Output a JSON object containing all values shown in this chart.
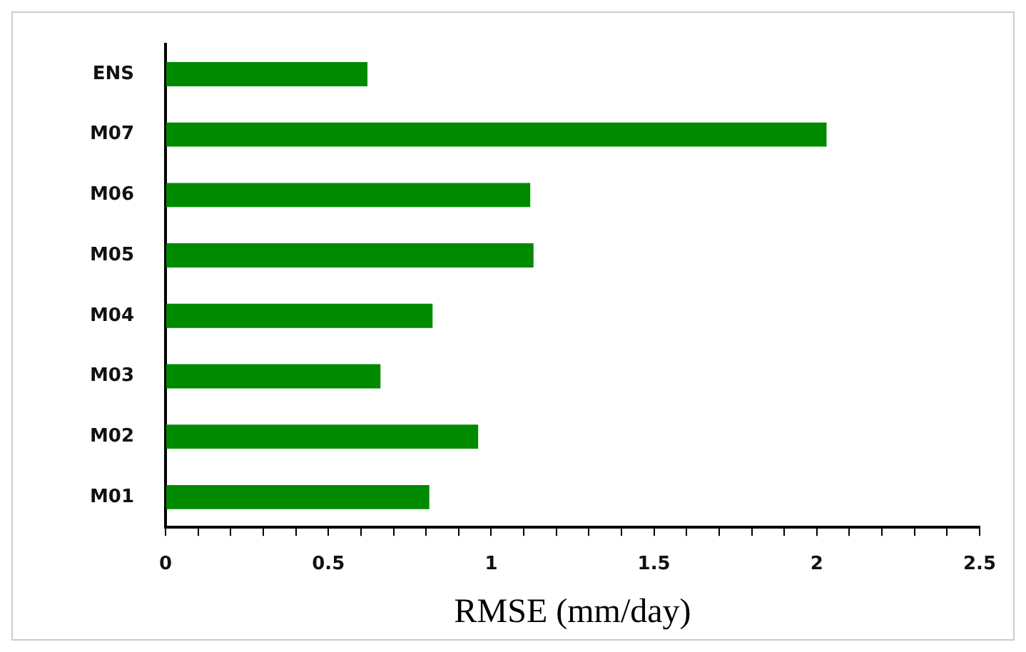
{
  "chart_data": {
    "type": "bar",
    "orientation": "horizontal",
    "xlabel": "RMSE (mm/day)",
    "categories": [
      "ENS",
      "M07",
      "M06",
      "M05",
      "M04",
      "M03",
      "M02",
      "M01"
    ],
    "values": [
      0.62,
      2.03,
      1.12,
      1.13,
      0.82,
      0.66,
      0.96,
      0.81
    ],
    "color": "#008a00",
    "xlim": [
      0,
      2.5
    ],
    "xticks": [
      0,
      {
        "value": 0.1,
        "label": null
      },
      {
        "value": 0.2,
        "label": null
      },
      {
        "value": 0.3,
        "label": null
      },
      {
        "value": 0.4,
        "label": null
      },
      0.5,
      {
        "value": 0.6,
        "label": null
      },
      {
        "value": 0.7,
        "label": null
      },
      {
        "value": 0.8,
        "label": null
      },
      {
        "value": 0.9,
        "label": null
      },
      1,
      {
        "value": 1.1,
        "label": null
      },
      {
        "value": 1.2,
        "label": null
      },
      {
        "value": 1.3,
        "label": null
      },
      {
        "value": 1.4,
        "label": null
      },
      1.5,
      {
        "value": 1.6,
        "label": null
      },
      {
        "value": 1.7,
        "label": null
      },
      {
        "value": 1.8,
        "label": null
      },
      {
        "value": 1.9,
        "label": null
      },
      2,
      {
        "value": 2.1,
        "label": null
      },
      {
        "value": 2.2,
        "label": null
      },
      {
        "value": 2.3,
        "label": null
      },
      {
        "value": 2.4,
        "label": null
      },
      2.5
    ],
    "grid": false,
    "legend": false
  }
}
